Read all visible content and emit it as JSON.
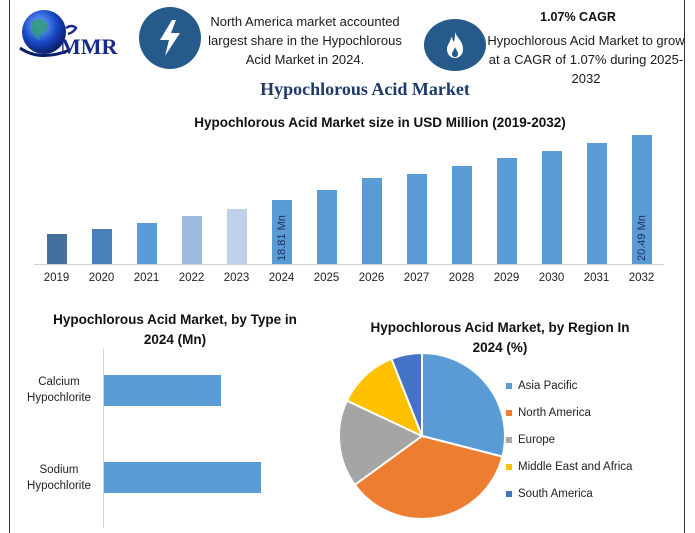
{
  "header": {
    "logo_text": "MMR",
    "highlight_1": "North America market accounted largest share in the Hypochlorous Acid Market in 2024.",
    "cagr_title": "1.07% CAGR",
    "cagr_text": "Hypochlorous Acid Market to grow at a CAGR of 1.07% during 2025-2032",
    "icons": [
      "globe-logo-icon",
      "lightning-bolt-icon",
      "flame-icon"
    ],
    "icon_color": "#255a8a"
  },
  "main_title": "Hypochlorous Acid Market",
  "chart_data": [
    {
      "type": "bar",
      "title": "Hypochlorous Acid Market size in USD Million (2019-2032)",
      "xlabel": "",
      "ylabel": "",
      "grid": false,
      "categories": [
        "2019",
        "2020",
        "2021",
        "2022",
        "2023",
        "2024",
        "2025",
        "2026",
        "2027",
        "2028",
        "2029",
        "2030",
        "2031",
        "2032"
      ],
      "values": [
        15.2,
        15.8,
        16.5,
        17.3,
        18.0,
        18.81,
        19.0,
        19.3,
        19.4,
        19.6,
        19.8,
        20.0,
        20.25,
        20.49
      ],
      "data_labels": {
        "2024": "18.81 Mn",
        "2032": "20.49 Mn"
      },
      "pixel_heights": [
        31,
        36,
        42,
        49,
        56,
        65,
        75,
        87,
        91,
        99,
        107,
        114,
        122,
        130
      ],
      "colors": [
        "#44709d",
        "#4a80b8",
        "#5b9bd5",
        "#9dbbe0",
        "#bdd1ea",
        "#5b9bd5",
        "#5b9bd5",
        "#5b9bd5",
        "#5b9bd5",
        "#5b9bd5",
        "#5b9bd5",
        "#5b9bd5",
        "#5b9bd5",
        "#5b9bd5"
      ]
    },
    {
      "type": "bar",
      "orientation": "horizontal",
      "title": "Hypochlorous Acid Market, by Type in 2024 (Mn)",
      "categories": [
        "Calcium Hypochlorite",
        "Sodium Hypochlorite"
      ],
      "values": [
        7.2,
        9.7
      ],
      "pixel_widths": [
        117,
        157
      ],
      "color": "#5b9bd5",
      "grid": false
    },
    {
      "type": "pie",
      "title": "Hypochlorous Acid Market, by Region In 2024 (%)",
      "categories": [
        "Asia Pacific",
        "North America",
        "Europe",
        "Middle East and Africa",
        "South America"
      ],
      "values": [
        29,
        36,
        17,
        12,
        6
      ],
      "colors": [
        "#5b9bd5",
        "#ed7d31",
        "#a5a5a5",
        "#ffc000",
        "#4472c4"
      ],
      "legend_position": "right"
    }
  ]
}
